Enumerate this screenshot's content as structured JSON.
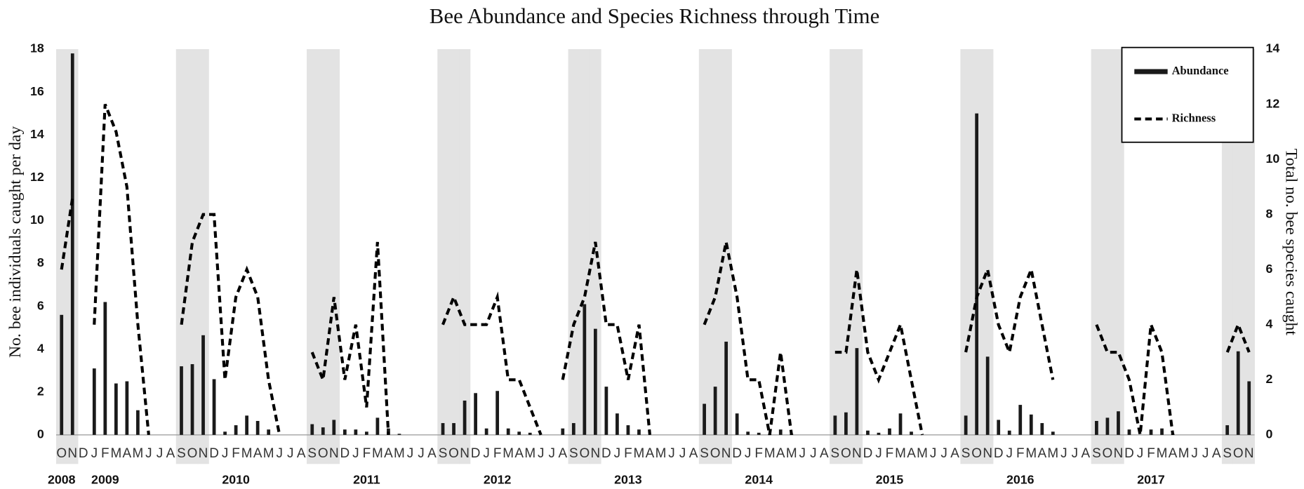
{
  "chart_data": {
    "type": "combo",
    "title": "Bee Abundance and Species Richness through Time",
    "y_label": "No. bee individuals caught per day",
    "y2_label": "Total no. bee species caught",
    "categories": [
      "O",
      "N",
      "D",
      "J",
      "F",
      "M",
      "A",
      "M",
      "J",
      "J",
      "A",
      "S",
      "O",
      "N",
      "D",
      "J",
      "F",
      "M",
      "A",
      "M",
      "J",
      "J",
      "A",
      "S",
      "O",
      "N",
      "D",
      "J",
      "F",
      "M",
      "A",
      "M",
      "J",
      "J",
      "A",
      "S",
      "O",
      "N",
      "D",
      "J",
      "F",
      "M",
      "A",
      "M",
      "J",
      "J",
      "A",
      "S",
      "O",
      "N",
      "D",
      "J",
      "F",
      "M",
      "A",
      "M",
      "J",
      "J",
      "A",
      "S",
      "O",
      "N",
      "D",
      "J",
      "F",
      "M",
      "A",
      "M",
      "J",
      "J",
      "A",
      "S",
      "O",
      "N",
      "D",
      "J",
      "F",
      "M",
      "A",
      "M",
      "J",
      "J",
      "A",
      "S",
      "O",
      "N",
      "D",
      "J",
      "F",
      "M",
      "A",
      "M",
      "J",
      "J",
      "A",
      "S",
      "O",
      "N",
      "D",
      "J",
      "F",
      "M",
      "A",
      "M",
      "J",
      "J",
      "A",
      "S",
      "O",
      "N"
    ],
    "years": [
      "2008",
      "2009",
      "2010",
      "2011",
      "2012",
      "2013",
      "2014",
      "2015",
      "2016",
      "2017"
    ],
    "series": [
      {
        "name": "Abundance",
        "type": "bar",
        "color": "#1a1a1a",
        "values": [
          5.6,
          17.8,
          0,
          3.1,
          6.2,
          2.4,
          2.5,
          1.15,
          0,
          0,
          0,
          3.2,
          3.3,
          4.65,
          2.6,
          0.15,
          0.45,
          0.9,
          0.65,
          0.25,
          0,
          0,
          0,
          0.5,
          0.35,
          0.7,
          0.25,
          0.25,
          0.15,
          0.8,
          0.3,
          0.05,
          0,
          0,
          0,
          0.55,
          0.55,
          1.6,
          1.95,
          0.3,
          2.05,
          0.3,
          0.15,
          0.1,
          0,
          0,
          0.3,
          0.55,
          6.1,
          4.95,
          2.25,
          1.0,
          0.45,
          0.25,
          0,
          0,
          0,
          0,
          0,
          1.45,
          2.25,
          4.35,
          1.0,
          0.15,
          0.1,
          0.05,
          0.25,
          0.05,
          0,
          0,
          0,
          0.9,
          1.05,
          4.05,
          0.2,
          0.1,
          0.3,
          1.0,
          0.15,
          0,
          0,
          0,
          0,
          0.9,
          15.0,
          3.65,
          0.7,
          0.2,
          1.4,
          0.95,
          0.55,
          0.15,
          0,
          0,
          0,
          0.65,
          0.8,
          1.1,
          0.25,
          0,
          0.25,
          0.3,
          0.05,
          0,
          0,
          0,
          0,
          0.45,
          3.9,
          2.5
        ]
      },
      {
        "name": "Richness",
        "type": "line",
        "axis": "y2",
        "dashed": true,
        "color": "#000000",
        "values": [
          6,
          8.6,
          null,
          4,
          12,
          11,
          9,
          4,
          0,
          null,
          null,
          4,
          7,
          8,
          8,
          2,
          5,
          6,
          5,
          2,
          0,
          null,
          null,
          3,
          2,
          5,
          2,
          4,
          1,
          7,
          0,
          null,
          null,
          null,
          null,
          4,
          5,
          4,
          4,
          4,
          5,
          2,
          2,
          1,
          0,
          null,
          2,
          4,
          5,
          7,
          4,
          4,
          2,
          4,
          0,
          null,
          null,
          null,
          null,
          4,
          5,
          7,
          5,
          2,
          2,
          0,
          3,
          0,
          null,
          null,
          null,
          3,
          3,
          6,
          3,
          2,
          3,
          4,
          2,
          0,
          null,
          null,
          null,
          3,
          5,
          6,
          4,
          3,
          5,
          6,
          4,
          2,
          null,
          null,
          null,
          4,
          3,
          3,
          2,
          0,
          4,
          3,
          0,
          null,
          null,
          null,
          null,
          3,
          4,
          3
        ]
      }
    ],
    "ylim": [
      0,
      18
    ],
    "yticks": [
      0,
      2,
      4,
      6,
      8,
      10,
      12,
      14,
      16,
      18
    ],
    "y2lim": [
      0,
      14
    ],
    "y2ticks": [
      0,
      2,
      4,
      6,
      8,
      10,
      12,
      14
    ],
    "shading": true,
    "legend": "upper right"
  }
}
